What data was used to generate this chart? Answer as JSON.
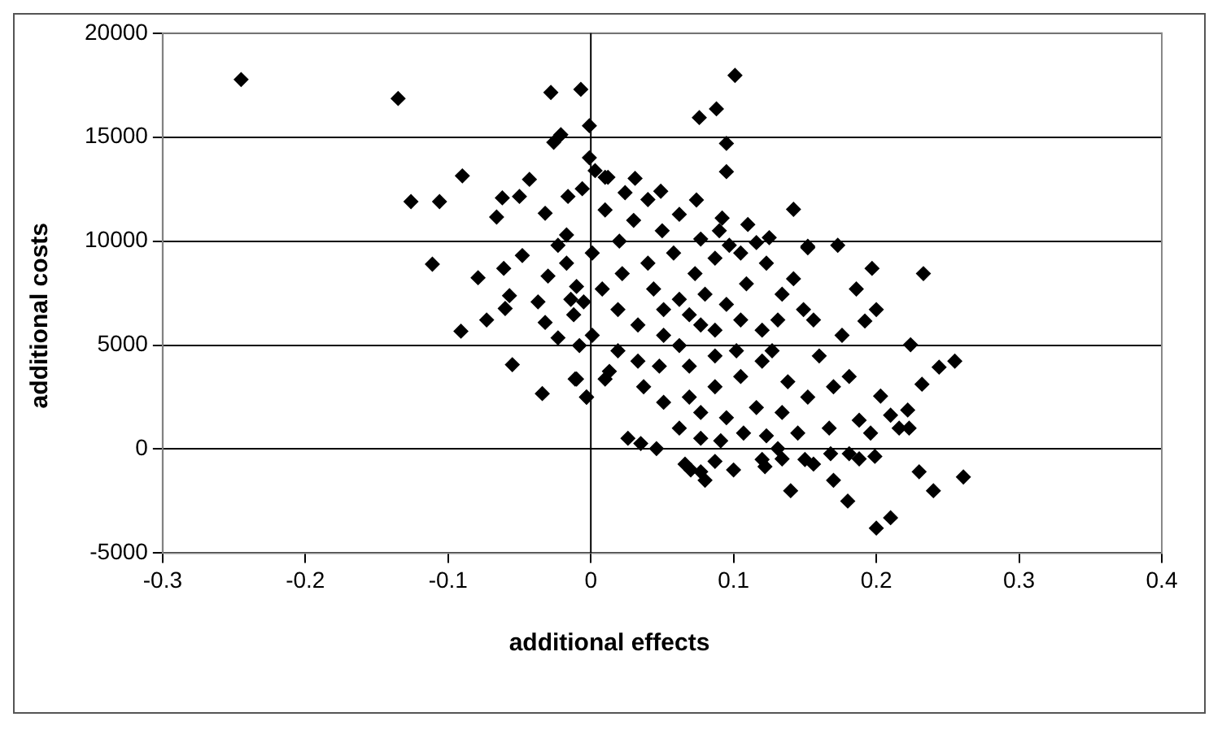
{
  "chart_data": {
    "type": "scatter",
    "xlabel": "additional effects",
    "ylabel": "additional costs",
    "xlim": [
      -0.3,
      0.4
    ],
    "xticks": [
      -0.3,
      -0.2,
      -0.1,
      0,
      0.1,
      0.2,
      0.3,
      0.4
    ],
    "ylim": [
      -5000,
      20000
    ],
    "yticks": [
      -5000,
      0,
      5000,
      10000,
      15000,
      20000
    ],
    "grid": "y",
    "legend": false,
    "ref_lines": [
      {
        "axis": "x",
        "value": 0
      }
    ],
    "marker": "diamond",
    "series": [
      {
        "color": "#000000",
        "x": [
          -0.245,
          -0.135,
          -0.028,
          -0.007,
          -0.001,
          -0.026,
          -0.021,
          -0.09,
          -0.043,
          -0.126,
          -0.106,
          -0.062,
          -0.05,
          -0.066,
          -0.032,
          -0.016,
          -0.006,
          -0.001,
          0.003,
          0.01,
          -0.111,
          -0.079,
          -0.061,
          -0.048,
          -0.057,
          -0.06,
          -0.037,
          -0.03,
          -0.023,
          -0.017,
          -0.073,
          -0.091,
          -0.032,
          -0.023,
          -0.008,
          -0.055,
          -0.011,
          0.01,
          -0.034,
          -0.003,
          -0.012,
          -0.005,
          -0.01,
          0.101,
          0.076,
          0.088,
          0.095,
          0.095,
          0.142,
          0.049,
          0.074,
          0.031,
          0.024,
          0.092,
          0.062,
          0.012,
          0.173,
          0.152,
          0.125,
          0.116,
          0.097,
          0.077,
          0.197,
          0.233,
          0.186,
          0.2,
          0.192,
          0.224,
          0.244,
          0.255,
          0.232,
          0.203,
          0.222,
          0.21,
          0.216,
          0.223,
          0.188,
          0.196,
          0.199,
          0.188,
          0.23,
          0.261,
          0.026,
          0.035,
          0.046,
          -0.01,
          0.013,
          -0.003,
          0.091,
          0.107,
          0.123,
          0.131,
          0.167,
          0.168,
          0.145,
          0.066,
          0.077,
          0.087,
          0.122,
          0.134,
          0.156,
          0.181,
          0.152,
          0.17,
          0.181,
          0.138,
          0.16,
          0.176,
          0.149,
          0.156,
          0.134,
          0.142,
          0.152,
          0.123,
          0.109,
          0.095,
          0.077,
          0.062,
          0.048,
          0.037,
          0.051,
          0.069,
          0.087,
          0.105,
          0.12,
          0.127,
          0.102,
          0.087,
          0.069,
          0.051,
          0.033,
          0.019,
          0.008,
          0.022,
          0.04,
          0.058,
          0.073,
          0.087,
          0.105,
          0.08,
          0.062,
          0.044,
          0.051,
          0.069,
          0.087,
          0.105,
          0.12,
          0.131,
          0.001,
          -0.017,
          -0.014,
          0.001,
          0.019,
          0.033,
          0.077,
          0.095,
          0.116,
          0.134,
          0.062,
          0.077,
          0.03,
          0.05,
          0.02,
          0.09,
          0.11,
          0.01,
          0.04,
          0.21,
          0.2,
          0.18,
          0.17,
          0.14,
          0.24,
          0.08,
          0.07,
          0.1,
          0.12,
          0.15
        ],
        "values": [
          17770,
          16860,
          17150,
          17300,
          15550,
          14750,
          15120,
          13140,
          12970,
          11900,
          11900,
          12080,
          12150,
          11160,
          11340,
          12150,
          12520,
          14010,
          13390,
          13070,
          8890,
          8240,
          8690,
          9310,
          7380,
          6760,
          7080,
          8320,
          9800,
          10300,
          6210,
          5670,
          6090,
          5350,
          4980,
          4060,
          3370,
          3370,
          2670,
          2500,
          6460,
          7080,
          7820,
          17970,
          15940,
          16360,
          14700,
          13340,
          11530,
          12400,
          11980,
          13020,
          12330,
          11110,
          11290,
          13070,
          9800,
          9750,
          10170,
          9930,
          9800,
          10100,
          8690,
          8440,
          7700,
          6710,
          6160,
          5020,
          3940,
          4230,
          3120,
          2550,
          1880,
          1630,
          1010,
          1010,
          1390,
          770,
          -350,
          -470,
          -1090,
          -1340,
          520,
          270,
          25,
          3370,
          3740,
          2500,
          400,
          770,
          640,
          25,
          1010,
          -220,
          770,
          -720,
          -1090,
          -590,
          -840,
          -470,
          -720,
          -220,
          2500,
          3000,
          3490,
          3240,
          4480,
          5470,
          6710,
          6210,
          7450,
          8190,
          9680,
          8940,
          7950,
          6960,
          5970,
          4980,
          3990,
          3000,
          2250,
          2500,
          3000,
          3490,
          4230,
          4730,
          4730,
          4480,
          3990,
          5470,
          5970,
          6710,
          7700,
          8440,
          8940,
          9430,
          8440,
          9180,
          9430,
          7450,
          7200,
          7700,
          6710,
          6460,
          5720,
          6210,
          5720,
          6210,
          9430,
          8940,
          7200,
          5470,
          4730,
          4230,
          1760,
          1510,
          2000,
          1760,
          1010,
          520,
          11000,
          10500,
          10000,
          10500,
          10800,
          11500,
          12000,
          -3300,
          -3800,
          -2500,
          -1500,
          -2000,
          -2000,
          -1500,
          -1000,
          -1000,
          -500,
          -500
        ]
      }
    ]
  }
}
